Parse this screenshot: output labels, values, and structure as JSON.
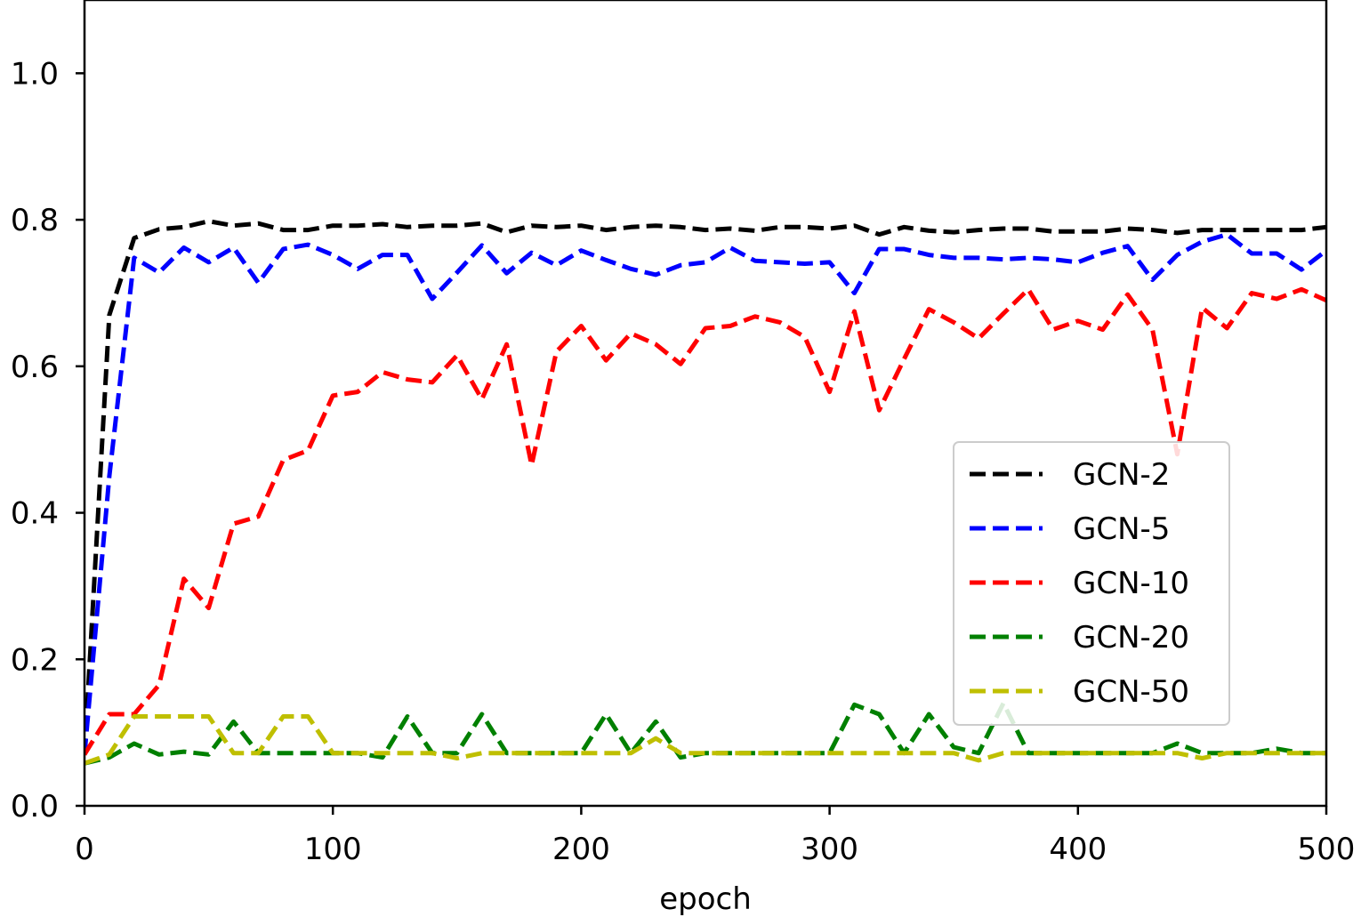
{
  "chart_data": {
    "type": "line",
    "title": "",
    "xlabel": "epoch",
    "ylabel": "",
    "xlim": [
      0,
      500
    ],
    "ylim": [
      0,
      1.1
    ],
    "xticks": [
      0,
      100,
      200,
      300,
      400,
      500
    ],
    "xtick_labels": [
      "0",
      "100",
      "200",
      "300",
      "400",
      "500"
    ],
    "yticks": [
      0.0,
      0.2,
      0.4,
      0.6,
      0.8,
      1.0
    ],
    "ytick_labels": [
      "0.0",
      "0.2",
      "0.4",
      "0.6",
      "0.8",
      "1.0"
    ],
    "grid": false,
    "legend_position": "center-right",
    "line_style": "dashed",
    "x": [
      0,
      10,
      20,
      30,
      40,
      50,
      60,
      70,
      80,
      90,
      100,
      110,
      120,
      130,
      140,
      150,
      160,
      170,
      180,
      190,
      200,
      210,
      220,
      230,
      240,
      250,
      260,
      270,
      280,
      290,
      300,
      310,
      320,
      330,
      340,
      350,
      360,
      370,
      380,
      390,
      400,
      410,
      420,
      430,
      440,
      450,
      460,
      470,
      480,
      490,
      500
    ],
    "series": [
      {
        "name": "GCN-2",
        "color": "#000000",
        "values": [
          0.07,
          0.67,
          0.775,
          0.787,
          0.79,
          0.798,
          0.792,
          0.795,
          0.786,
          0.786,
          0.792,
          0.792,
          0.794,
          0.79,
          0.792,
          0.792,
          0.795,
          0.783,
          0.792,
          0.79,
          0.792,
          0.786,
          0.79,
          0.792,
          0.79,
          0.786,
          0.788,
          0.785,
          0.79,
          0.79,
          0.788,
          0.792,
          0.78,
          0.79,
          0.785,
          0.783,
          0.786,
          0.788,
          0.788,
          0.784,
          0.784,
          0.784,
          0.788,
          0.786,
          0.782,
          0.786,
          0.786,
          0.786,
          0.786,
          0.786,
          0.79
        ]
      },
      {
        "name": "GCN-5",
        "color": "#0000ff",
        "values": [
          0.07,
          0.45,
          0.748,
          0.728,
          0.762,
          0.742,
          0.762,
          0.714,
          0.76,
          0.766,
          0.752,
          0.733,
          0.752,
          0.752,
          0.692,
          0.728,
          0.765,
          0.727,
          0.755,
          0.738,
          0.758,
          0.745,
          0.733,
          0.725,
          0.738,
          0.742,
          0.762,
          0.744,
          0.742,
          0.74,
          0.742,
          0.7,
          0.76,
          0.76,
          0.752,
          0.748,
          0.748,
          0.746,
          0.748,
          0.746,
          0.742,
          0.755,
          0.764,
          0.718,
          0.752,
          0.77,
          0.78,
          0.754,
          0.754,
          0.732,
          0.758
        ]
      },
      {
        "name": "GCN-10",
        "color": "#ff0000",
        "values": [
          0.07,
          0.125,
          0.125,
          0.165,
          0.31,
          0.27,
          0.385,
          0.395,
          0.472,
          0.485,
          0.56,
          0.565,
          0.592,
          0.582,
          0.578,
          0.615,
          0.555,
          0.63,
          0.465,
          0.62,
          0.655,
          0.608,
          0.645,
          0.63,
          0.603,
          0.652,
          0.655,
          0.668,
          0.66,
          0.64,
          0.565,
          0.675,
          0.54,
          0.61,
          0.678,
          0.66,
          0.638,
          0.672,
          0.705,
          0.65,
          0.662,
          0.65,
          0.698,
          0.65,
          0.48,
          0.68,
          0.652,
          0.7,
          0.692,
          0.705,
          0.69
        ]
      },
      {
        "name": "GCN-20",
        "color": "#008000",
        "values": [
          0.058,
          0.066,
          0.085,
          0.07,
          0.074,
          0.07,
          0.115,
          0.072,
          0.072,
          0.072,
          0.072,
          0.072,
          0.066,
          0.122,
          0.072,
          0.072,
          0.125,
          0.072,
          0.072,
          0.072,
          0.072,
          0.125,
          0.072,
          0.115,
          0.066,
          0.072,
          0.072,
          0.072,
          0.072,
          0.072,
          0.072,
          0.138,
          0.125,
          0.072,
          0.125,
          0.08,
          0.072,
          0.14,
          0.072,
          0.072,
          0.072,
          0.072,
          0.072,
          0.072,
          0.085,
          0.072,
          0.072,
          0.072,
          0.078,
          0.072,
          0.072
        ]
      },
      {
        "name": "GCN-50",
        "color": "#bfbf00",
        "values": [
          0.058,
          0.07,
          0.122,
          0.122,
          0.122,
          0.122,
          0.072,
          0.072,
          0.122,
          0.122,
          0.072,
          0.072,
          0.072,
          0.072,
          0.072,
          0.065,
          0.072,
          0.072,
          0.072,
          0.072,
          0.072,
          0.072,
          0.072,
          0.092,
          0.072,
          0.072,
          0.072,
          0.072,
          0.072,
          0.072,
          0.072,
          0.072,
          0.072,
          0.072,
          0.072,
          0.072,
          0.062,
          0.072,
          0.072,
          0.072,
          0.072,
          0.072,
          0.072,
          0.072,
          0.072,
          0.065,
          0.072,
          0.072,
          0.072,
          0.072,
          0.072
        ]
      }
    ]
  }
}
